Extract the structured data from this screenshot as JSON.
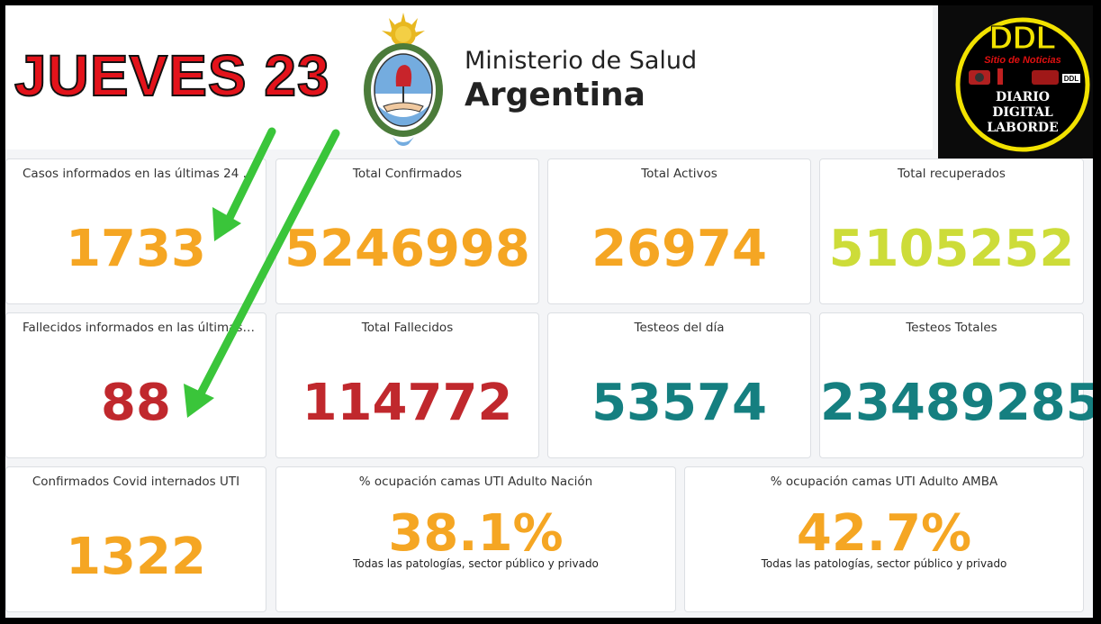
{
  "header": {
    "headline": "JUEVES 23",
    "ministry_line1": "Ministerio de Salud",
    "ministry_line2": "Argentina"
  },
  "ddl_logo": {
    "brand": "DDL",
    "tagline": "Sitio de Noticias",
    "small": "DDL",
    "line1": "DIARIO",
    "line2": "DIGITAL",
    "line3": "LABORDE"
  },
  "colors": {
    "orange": "#f5a623",
    "red": "#c0282d",
    "teal": "#157f80",
    "lime": "#cddc39",
    "headline_red": "#e3131b",
    "arrow_green": "#3ac53a"
  },
  "cards": [
    {
      "title": "Casos informados en las últimas 24 ...",
      "value": "1733",
      "color": "#f5a623"
    },
    {
      "title": "Total Confirmados",
      "value": "5246998",
      "color": "#f5a623"
    },
    {
      "title": "Total Activos",
      "value": "26974",
      "color": "#f5a623"
    },
    {
      "title": "Total recuperados",
      "value": "5105252",
      "color": "#cddc39"
    },
    {
      "title": "Fallecidos informados en las últimas ...",
      "value": "88",
      "color": "#c0282d"
    },
    {
      "title": "Total Fallecidos",
      "value": "114772",
      "color": "#c0282d"
    },
    {
      "title": "Testeos del día",
      "value": "53574",
      "color": "#157f80"
    },
    {
      "title": "Testeos Totales",
      "value": "23489285",
      "color": "#157f80"
    },
    {
      "title": "Confirmados Covid internados UTI",
      "value": "1322",
      "color": "#f5a623"
    },
    {
      "title": "% ocupación camas UTI Adulto Nación",
      "value": "38.1%",
      "color": "#f5a623",
      "sub": "Todas las patologías, sector público y privado"
    },
    {
      "title": "% ocupación camas UTI Adulto AMBA",
      "value": "42.7%",
      "color": "#f5a623",
      "sub": "Todas las patologías, sector público y privado"
    }
  ]
}
